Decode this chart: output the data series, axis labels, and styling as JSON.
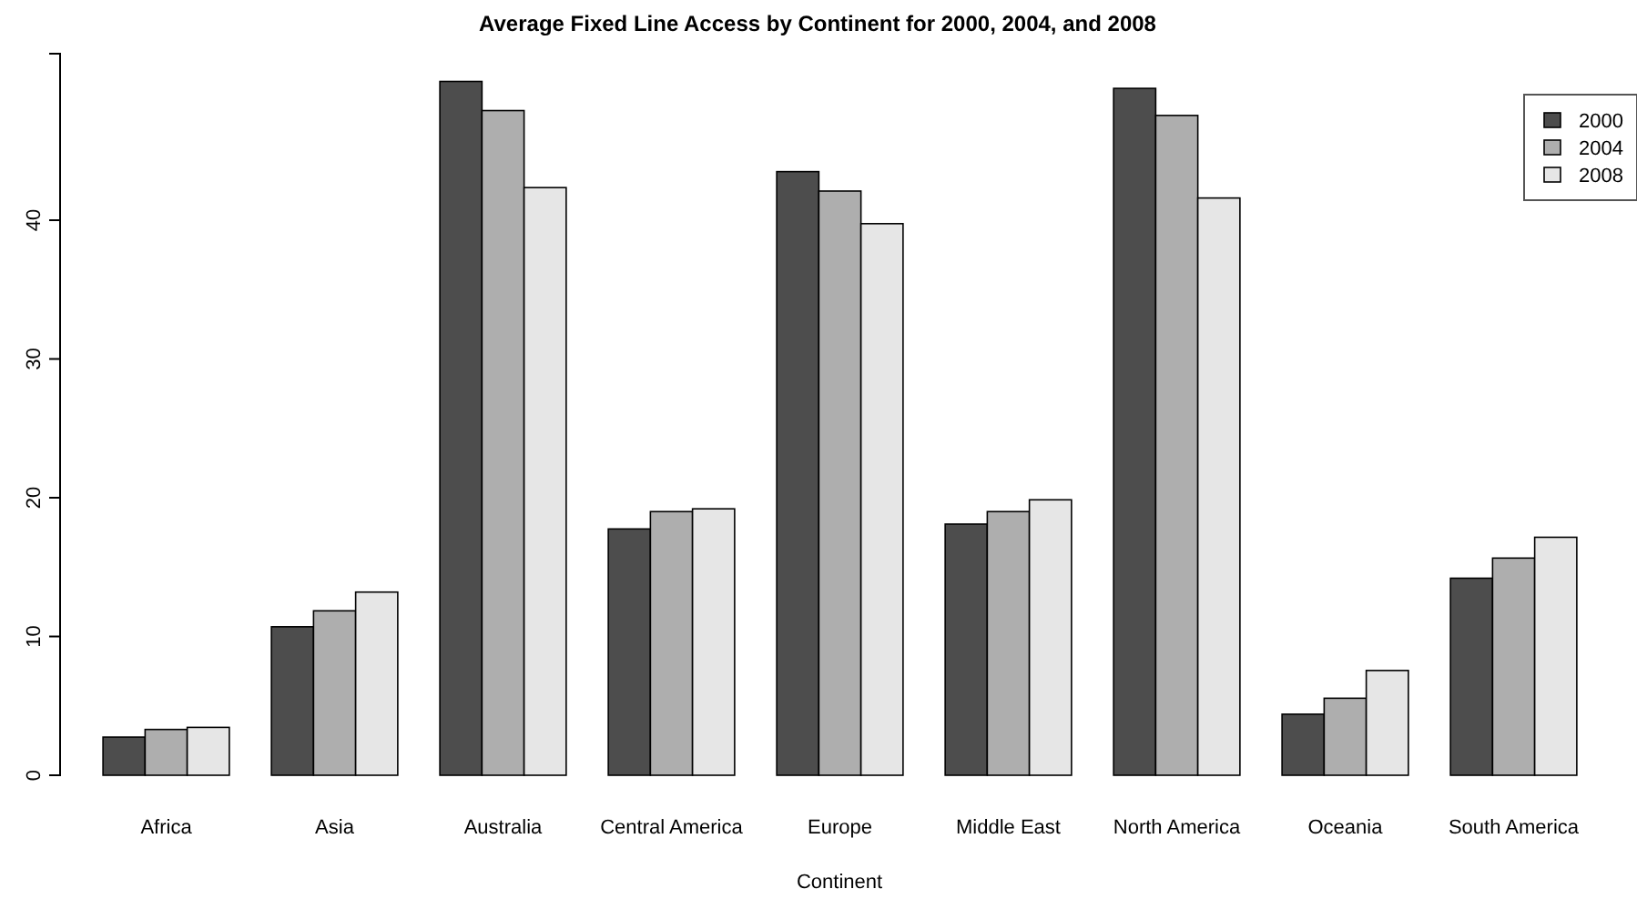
{
  "chart_data": {
    "type": "bar",
    "title": "Average Fixed Line Access by Continent for 2000, 2004, and 2008",
    "xlabel": "Continent",
    "categories": [
      "Africa",
      "Asia",
      "Australia",
      "Central America",
      "Europe",
      "Middle East",
      "North America",
      "Oceania",
      "South America"
    ],
    "series": [
      {
        "name": "2000",
        "color": "#4d4d4d",
        "values": [
          2.75,
          10.7,
          50.0,
          17.75,
          43.5,
          18.1,
          49.5,
          4.4,
          14.2
        ]
      },
      {
        "name": "2004",
        "color": "#aeaeae",
        "values": [
          3.3,
          11.85,
          47.9,
          19.0,
          42.1,
          19.0,
          47.55,
          5.55,
          15.65
        ]
      },
      {
        "name": "2008",
        "color": "#e6e6e6",
        "values": [
          3.45,
          13.2,
          42.35,
          19.2,
          39.75,
          19.85,
          41.6,
          7.55,
          17.15
        ]
      }
    ],
    "ylim": [
      0,
      52
    ],
    "yticks": [
      0,
      10,
      20,
      30,
      40
    ],
    "legend": "top right",
    "grid": false
  }
}
